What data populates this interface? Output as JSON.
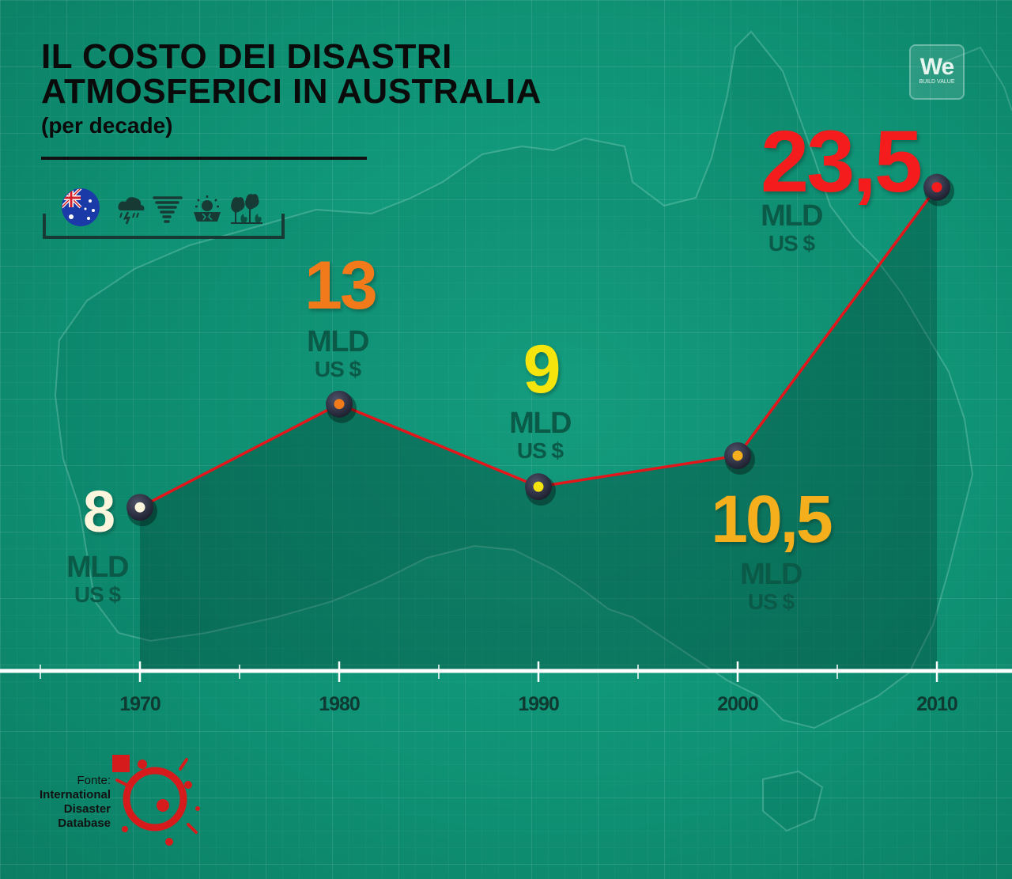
{
  "title_line1": "IL COSTO DEI DISASTRI",
  "title_line2": "ATMOSFERICI IN AUSTRALIA",
  "subtitle": "(per decade)",
  "icons": [
    "australia-flag-icon",
    "storm-icon",
    "tornado-icon",
    "drought-icon",
    "bushfire-icon"
  ],
  "logo": {
    "mark": "We",
    "tagline": "BUILD VALUE"
  },
  "source": {
    "label": "Fonte:",
    "name_line1": "International",
    "name_line2": "Disaster",
    "name_line3": "Database"
  },
  "unit_line1": "MLD",
  "unit_line2": "US $",
  "colors": {
    "background": "#0f9275",
    "line": "#e3161b",
    "label_1970": "#fdf6dc",
    "label_1980": "#f27a1a",
    "label_1990": "#f5e50c",
    "label_2000": "#f5ae1c",
    "label_2010": "#f41c1c"
  },
  "chart_data": {
    "type": "line",
    "title": "IL COSTO DEI DISASTRI ATMOSFERICI IN AUSTRALIA",
    "subtitle": "(per decade)",
    "x": [
      1970,
      1980,
      1990,
      2000,
      2010
    ],
    "x_tick_labels": [
      "1970",
      "1980",
      "1990",
      "2000",
      "2010"
    ],
    "values": [
      8,
      13,
      9,
      10.5,
      23.5
    ],
    "value_labels": [
      "8",
      "13",
      "9",
      "10,5",
      "23,5"
    ],
    "unit": "MLD US $",
    "grid": true
  }
}
